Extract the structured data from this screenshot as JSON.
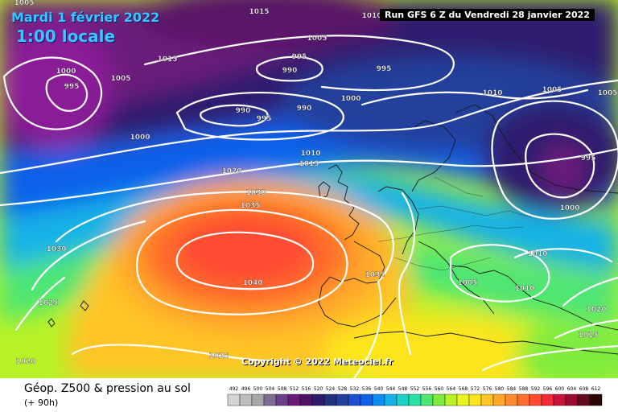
{
  "header": {
    "date": "Mardi 1 février 2022",
    "time": "1:00 locale",
    "run": "Run GFS 6 Z du Vendredi 28 janvier 2022"
  },
  "footer": {
    "title": "Géop. Z500 & pression au sol",
    "subtitle": "(+ 90h)"
  },
  "copyright": "Copyright © 2022 Meteociel.fr",
  "legend": {
    "values": [
      "492",
      "496",
      "500",
      "504",
      "508",
      "512",
      "516",
      "520",
      "524",
      "528",
      "532",
      "536",
      "540",
      "544",
      "548",
      "552",
      "556",
      "560",
      "564",
      "568",
      "572",
      "576",
      "580",
      "584",
      "588",
      "592",
      "596",
      "600",
      "604",
      "608",
      "612"
    ],
    "colors": [
      "#d4d4d4",
      "#bdbdbd",
      "#a8a8a8",
      "#7e6c94",
      "#6a3f88",
      "#6a1a7a",
      "#4d1466",
      "#2d1c6e",
      "#23307e",
      "#213f9c",
      "#1b4fcf",
      "#1160ea",
      "#0c8bf0",
      "#15b2e6",
      "#1cd2c6",
      "#28e0a4",
      "#4ee673",
      "#7fec3d",
      "#b8f226",
      "#e8f41d",
      "#fde51e",
      "#ffc525",
      "#ffa72a",
      "#ff8a2c",
      "#ff6d2c",
      "#ff4a30",
      "#f02a37",
      "#c9143a",
      "#9a0a31",
      "#640a1e",
      "#2a0606"
    ]
  },
  "isobar_labels": [
    {
      "text": "1005"
    },
    {
      "text": "1015"
    },
    {
      "text": "1010"
    },
    {
      "text": "1005"
    },
    {
      "text": "1015"
    },
    {
      "text": "1000"
    },
    {
      "text": "995"
    },
    {
      "text": "1005"
    },
    {
      "text": "995"
    },
    {
      "text": "990"
    },
    {
      "text": "995"
    },
    {
      "text": "1000"
    },
    {
      "text": "990"
    },
    {
      "text": "995"
    },
    {
      "text": "990"
    },
    {
      "text": "1010"
    },
    {
      "text": "1005"
    },
    {
      "text": "1005"
    },
    {
      "text": "1000"
    },
    {
      "text": "1010"
    },
    {
      "text": "1015"
    },
    {
      "text": "1020"
    },
    {
      "text": "995"
    },
    {
      "text": "1030"
    },
    {
      "text": "1035"
    },
    {
      "text": "1000"
    },
    {
      "text": "1030"
    },
    {
      "text": "1010"
    },
    {
      "text": "1040"
    },
    {
      "text": "1035"
    },
    {
      "text": "1005"
    },
    {
      "text": "1010"
    },
    {
      "text": "1025"
    },
    {
      "text": "1020"
    },
    {
      "text": "1015"
    },
    {
      "text": "1025"
    },
    {
      "text": "1020"
    }
  ]
}
